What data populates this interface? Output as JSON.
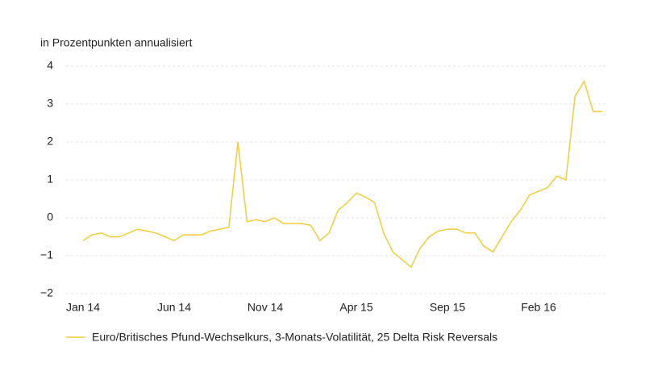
{
  "chart_data": {
    "type": "line",
    "subtitle": "in Prozentpunkten annualisiert",
    "categories": [
      "Jan 14",
      null,
      null,
      null,
      null,
      null,
      null,
      null,
      null,
      null,
      "Jun 14",
      null,
      null,
      null,
      null,
      null,
      null,
      null,
      null,
      null,
      "Nov 14",
      null,
      null,
      null,
      null,
      null,
      null,
      null,
      null,
      null,
      "Apr 15",
      null,
      null,
      null,
      null,
      null,
      null,
      null,
      null,
      null,
      "Sep 15",
      null,
      null,
      null,
      null,
      null,
      null,
      null,
      null,
      null,
      "Feb 16",
      null,
      null,
      null,
      null,
      null,
      null,
      null
    ],
    "series": [
      {
        "name": "Euro/Britisches Pfund-Wechselkurs, 3-Monats-Volatilität, 25 Delta Risk Reversals",
        "color": "#f2cd3a",
        "values": [
          -0.6,
          -0.45,
          -0.4,
          -0.5,
          -0.5,
          -0.4,
          -0.3,
          -0.35,
          -0.4,
          -0.5,
          -0.6,
          -0.45,
          -0.45,
          -0.45,
          -0.35,
          -0.3,
          -0.25,
          2.0,
          -0.1,
          -0.05,
          -0.1,
          0.0,
          -0.15,
          -0.15,
          -0.15,
          -0.2,
          -0.6,
          -0.4,
          0.2,
          0.4,
          0.65,
          0.55,
          0.4,
          -0.4,
          -0.9,
          -1.1,
          -1.3,
          -0.8,
          -0.5,
          -0.35,
          -0.3,
          -0.3,
          -0.4,
          -0.4,
          -0.75,
          -0.9,
          -0.5,
          -0.1,
          0.2,
          0.6,
          0.7,
          0.8,
          1.1,
          1.0,
          3.2,
          3.6,
          2.8,
          2.8
        ]
      }
    ],
    "ylim": [
      -2,
      4
    ],
    "yticks": [
      {
        "value": -2,
        "label": "−2"
      },
      {
        "value": -1,
        "label": "−1"
      },
      0,
      1,
      2,
      3,
      4
    ],
    "grid": true
  }
}
